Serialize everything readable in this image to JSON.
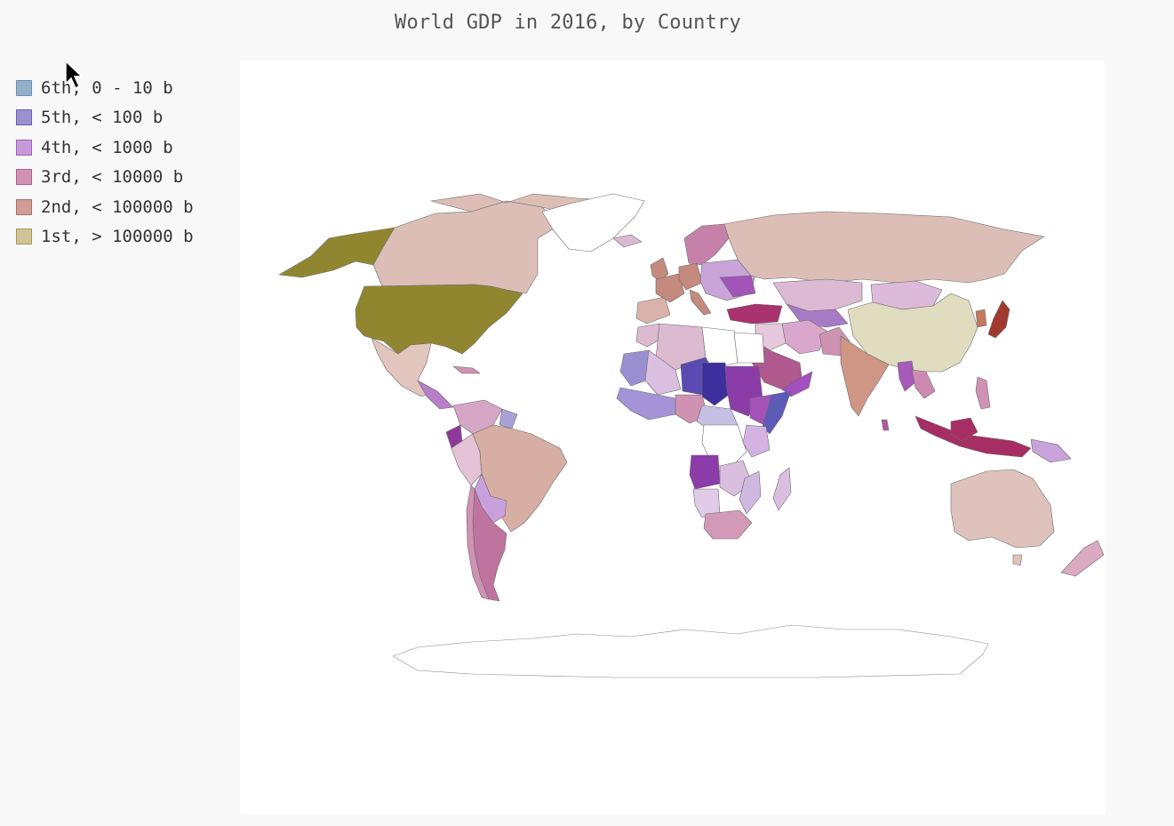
{
  "title": "World GDP in 2016, by Country",
  "legend": [
    {
      "label": "6th, 0 - 10 b",
      "fill": "#94aec9",
      "stroke": "#6f8fb4"
    },
    {
      "label": "5th, < 100 b",
      "fill": "#9a90cf",
      "stroke": "#6d5fb8"
    },
    {
      "label": "4th, < 1000 b",
      "fill": "#c99ad8",
      "stroke": "#a35ec0"
    },
    {
      "label": "3rd, < 10000 b",
      "fill": "#cf92b3",
      "stroke": "#b0608d"
    },
    {
      "label": "2nd, < 100000 b",
      "fill": "#cf9c96",
      "stroke": "#b06f65"
    },
    {
      "label": "1st, > 100000 b",
      "fill": "#cdc394",
      "stroke": "#a89a55"
    }
  ],
  "map_data": {
    "type": "choropleth",
    "projection": "world",
    "countries": [
      {
        "name": "United States",
        "tier": "1st"
      },
      {
        "name": "China",
        "tier": "1st"
      },
      {
        "name": "Japan",
        "tier": "2nd"
      },
      {
        "name": "Germany",
        "tier": "2nd"
      },
      {
        "name": "France",
        "tier": "2nd"
      },
      {
        "name": "United Kingdom",
        "tier": "2nd"
      },
      {
        "name": "Italy",
        "tier": "2nd"
      },
      {
        "name": "India",
        "tier": "2nd"
      },
      {
        "name": "Brazil",
        "tier": "2nd"
      },
      {
        "name": "Canada",
        "tier": "2nd"
      },
      {
        "name": "Russia",
        "tier": "2nd"
      },
      {
        "name": "Australia",
        "tier": "2nd"
      },
      {
        "name": "Mexico",
        "tier": "2nd"
      },
      {
        "name": "Spain",
        "tier": "2nd"
      },
      {
        "name": "Indonesia",
        "tier": "3rd"
      },
      {
        "name": "Turkey",
        "tier": "3rd"
      },
      {
        "name": "Saudi Arabia",
        "tier": "3rd"
      },
      {
        "name": "Argentina",
        "tier": "3rd"
      },
      {
        "name": "Nigeria",
        "tier": "3rd"
      },
      {
        "name": "Iran",
        "tier": "3rd"
      },
      {
        "name": "South Africa",
        "tier": "3rd"
      },
      {
        "name": "Egypt",
        "tier": "3rd"
      },
      {
        "name": "Pakistan",
        "tier": "3rd"
      },
      {
        "name": "Kazakhstan",
        "tier": "4th"
      },
      {
        "name": "Algeria",
        "tier": "4th"
      },
      {
        "name": "Angola",
        "tier": "4th"
      },
      {
        "name": "Sudan",
        "tier": "4th"
      },
      {
        "name": "Ethiopia",
        "tier": "4th"
      },
      {
        "name": "Chad",
        "tier": "5th"
      },
      {
        "name": "Niger",
        "tier": "5th"
      },
      {
        "name": "Mali",
        "tier": "5th"
      },
      {
        "name": "Somalia",
        "tier": "5th"
      }
    ]
  }
}
